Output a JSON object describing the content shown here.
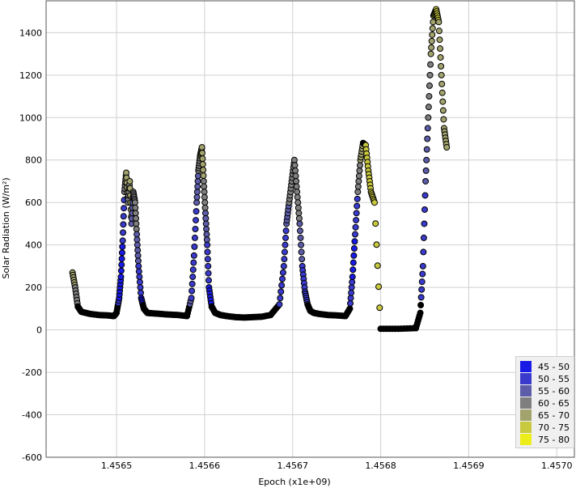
{
  "chart_data": {
    "type": "scatter",
    "xlabel": "Epoch (x1e+09)",
    "ylabel": "Solar Radiation (W/m²)",
    "xlim": [
      1.45642,
      1.45702
    ],
    "ylim": [
      -600,
      1550
    ],
    "x_ticks": [
      "1.4565",
      "1.4566",
      "1.4567",
      "1.4568",
      "1.4569",
      "1.4570"
    ],
    "y_ticks": [
      "-600",
      "-400",
      "-200",
      "0",
      "200",
      "400",
      "600",
      "800",
      "1000",
      "1200",
      "1400"
    ],
    "grid": true,
    "legend_position": "bottom-right",
    "legend": [
      {
        "label": "45 - 50",
        "color": "#1a1ae6"
      },
      {
        "label": "50 - 55",
        "color": "#3a3acd"
      },
      {
        "label": "55 - 60",
        "color": "#5c5ca8"
      },
      {
        "label": "60 - 65",
        "color": "#7f7f7f"
      },
      {
        "label": "65 - 70",
        "color": "#a3a36e"
      },
      {
        "label": "70 - 75",
        "color": "#c9c940"
      },
      {
        "label": "75 - 80",
        "color": "#eded1a"
      }
    ],
    "series_description_segments": [
      {
        "x": [
          1.45645,
          1.456453,
          1.456456,
          1.45646,
          1.45647,
          1.45648,
          1.45649,
          1.456497,
          1.4565,
          1.456503,
          1.456505,
          1.456507,
          1.456509,
          1.456511,
          1.456513,
          1.456515,
          1.456517,
          1.456519,
          1.456521,
          1.456523,
          1.456525,
          1.456528,
          1.456531,
          1.456535,
          1.45654,
          1.45655,
          1.45656,
          1.45657,
          1.45658,
          1.456585,
          1.456588,
          1.456591,
          1.456593,
          1.456595,
          1.456597,
          1.456599,
          1.456601,
          1.456603,
          1.456605,
          1.456608,
          1.456612,
          1.456618,
          1.456625,
          1.456635,
          1.456645,
          1.456655,
          1.456665,
          1.456675,
          1.456685,
          1.45669,
          1.456693,
          1.456696,
          1.456699,
          1.456702,
          1.456705,
          1.456708,
          1.456711,
          1.456714,
          1.456717,
          1.45672,
          1.456724,
          1.45673,
          1.45674,
          1.45675,
          1.45676,
          1.456765,
          1.456768,
          1.456771,
          1.456774,
          1.456777,
          1.45678,
          1.456783,
          1.456786,
          1.456789,
          1.456793,
          1.4568,
          1.45682,
          1.45684,
          1.456845,
          1.456848,
          1.456851,
          1.456854,
          1.456857,
          1.45686,
          1.456863,
          1.456866,
          1.456869,
          1.456872,
          1.456875
        ],
        "y": [
          270,
          200,
          110,
          85,
          75,
          70,
          68,
          65,
          80,
          150,
          250,
          420,
          650,
          740,
          600,
          700,
          500,
          650,
          600,
          450,
          300,
          150,
          100,
          80,
          78,
          75,
          72,
          70,
          65,
          150,
          350,
          600,
          750,
          820,
          860,
          700,
          550,
          400,
          200,
          110,
          80,
          70,
          65,
          60,
          58,
          60,
          62,
          70,
          120,
          300,
          500,
          600,
          700,
          800,
          650,
          500,
          300,
          180,
          120,
          90,
          80,
          75,
          70,
          68,
          65,
          100,
          250,
          450,
          650,
          800,
          880,
          870,
          750,
          650,
          600,
          5,
          5,
          8,
          80,
          300,
          700,
          1000,
          1300,
          1480,
          1510,
          1450,
          1200,
          950,
          860
        ],
        "color_band": [
          5,
          4,
          3,
          3,
          3,
          3,
          3,
          2,
          2,
          1,
          1,
          2,
          4,
          5,
          4,
          5,
          3,
          4,
          4,
          3,
          2,
          1,
          3,
          3,
          3,
          3,
          3,
          3,
          3,
          2,
          2,
          3,
          4,
          5,
          5,
          4,
          3,
          2,
          1,
          3,
          3,
          3,
          3,
          3,
          3,
          3,
          3,
          3,
          2,
          2,
          3,
          4,
          4,
          4,
          4,
          3,
          2,
          2,
          3,
          3,
          3,
          3,
          3,
          3,
          3,
          2,
          1,
          2,
          4,
          5,
          6,
          6,
          6,
          6,
          6,
          3,
          3,
          3,
          2,
          2,
          3,
          4,
          5,
          6,
          6,
          5,
          5,
          5,
          5
        ]
      }
    ]
  }
}
